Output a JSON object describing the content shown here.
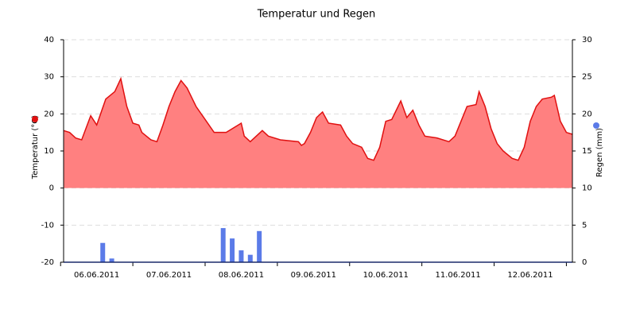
{
  "chart_data": {
    "type": "area",
    "title": "Temperatur und Regen",
    "ylabel": "Temperatur (°C)",
    "y2label": "Regen (mm)",
    "xlim": [
      1,
      170
    ],
    "xticks": [
      {
        "value": 12,
        "label": "06.06.2011"
      },
      {
        "value": 36,
        "label": "07.06.2011"
      },
      {
        "value": 60,
        "label": "08.06.2011"
      },
      {
        "value": 84,
        "label": "09.06.2011"
      },
      {
        "value": 108,
        "label": "10.06.2011"
      },
      {
        "value": 132,
        "label": "11.06.2011"
      },
      {
        "value": 156,
        "label": "12.06.2011"
      }
    ],
    "xtick_marks": [
      0,
      24,
      48,
      72,
      96,
      120,
      144,
      168
    ],
    "ylim": [
      -20,
      40
    ],
    "yticks": [
      -20,
      -10,
      0,
      10,
      20,
      30,
      40
    ],
    "y2lim": [
      0,
      30
    ],
    "y2ticks": [
      0,
      5,
      10,
      15,
      20,
      25,
      30
    ],
    "grid": true,
    "series": [
      {
        "name": "Temperatur",
        "type": "area",
        "color": "#e01010",
        "fill": "#ff8080",
        "x": [
          1,
          3,
          5,
          7,
          10,
          12,
          15,
          18,
          20,
          22,
          24,
          26,
          27,
          30,
          32,
          34,
          36,
          38,
          40,
          42,
          45,
          48,
          51,
          55,
          59,
          60,
          61,
          63,
          67,
          69,
          73,
          79,
          80,
          81,
          83,
          85,
          87,
          89,
          93,
          95,
          97,
          100,
          102,
          104,
          106,
          108,
          110,
          113,
          115,
          117,
          119,
          121,
          125,
          129,
          131,
          133,
          135,
          138,
          139,
          141,
          143,
          145,
          147,
          150,
          152,
          154,
          156,
          158,
          160,
          163,
          164,
          166,
          168,
          170
        ],
        "values": [
          15.5,
          15,
          13.5,
          13,
          19.5,
          17,
          24,
          26,
          29.5,
          22,
          17.5,
          17,
          15,
          13,
          12.5,
          17,
          22,
          26,
          29,
          27,
          22,
          18.5,
          15,
          15,
          17,
          17.5,
          14,
          12.5,
          15.5,
          14,
          13,
          12.5,
          11.5,
          12,
          15,
          19,
          20.5,
          17.5,
          17,
          14,
          12,
          11,
          8,
          7.5,
          11,
          18,
          18.5,
          23.5,
          19,
          21,
          17,
          14,
          13.5,
          12.5,
          14,
          18,
          22,
          22.5,
          26,
          22,
          16,
          12,
          10,
          8,
          7.5,
          11,
          18,
          22,
          24,
          24.5,
          25,
          18,
          15,
          14.5
        ]
      },
      {
        "name": "Regen",
        "type": "bar",
        "axis": "y2",
        "color": "#5b7be8",
        "x": [
          14,
          17,
          54,
          57,
          60,
          63,
          66
        ],
        "values": [
          2.6,
          0.5,
          4.6,
          3.2,
          1.6,
          1.0,
          4.2
        ]
      }
    ]
  }
}
